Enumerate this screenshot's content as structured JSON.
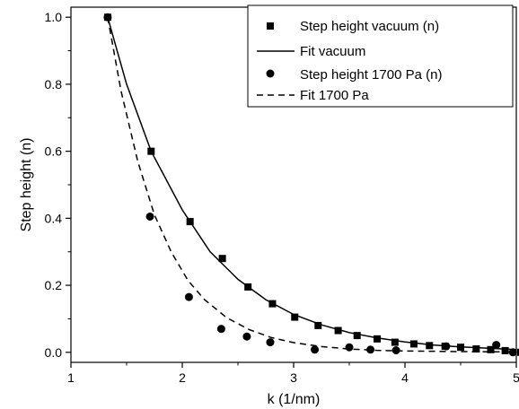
{
  "chart_data": {
    "type": "scatter",
    "title": "",
    "xlabel": "k (1/nm)",
    "ylabel": "Step height (n)",
    "xlim": [
      1,
      5
    ],
    "ylim": [
      -0.03,
      1.03
    ],
    "x_ticks": [
      "1",
      "2",
      "3",
      "4",
      "5"
    ],
    "y_ticks": [
      "0.0",
      "0.2",
      "0.4",
      "0.6",
      "0.8",
      "1.0"
    ],
    "legend_position": "top-right",
    "grid": false,
    "series": [
      {
        "name": "Step height vacuum (n)",
        "kind": "marker-square",
        "color": "#000000",
        "points": [
          [
            1.33,
            1.0
          ],
          [
            1.72,
            0.6
          ],
          [
            2.07,
            0.39
          ],
          [
            2.36,
            0.28
          ],
          [
            2.59,
            0.195
          ],
          [
            2.81,
            0.145
          ],
          [
            3.01,
            0.105
          ],
          [
            3.22,
            0.08
          ],
          [
            3.4,
            0.065
          ],
          [
            3.57,
            0.05
          ],
          [
            3.75,
            0.04
          ],
          [
            3.91,
            0.03
          ],
          [
            4.08,
            0.025
          ],
          [
            4.22,
            0.02
          ],
          [
            4.36,
            0.018
          ],
          [
            4.5,
            0.015
          ],
          [
            4.64,
            0.01
          ],
          [
            4.77,
            0.008
          ],
          [
            4.9,
            0.005
          ],
          [
            5.04,
            0.0
          ]
        ]
      },
      {
        "name": "Fit vacuum",
        "kind": "line-solid",
        "color": "#000000",
        "points": [
          [
            1.33,
            1.0
          ],
          [
            1.5,
            0.8
          ],
          [
            1.72,
            0.6
          ],
          [
            2.0,
            0.425
          ],
          [
            2.25,
            0.3
          ],
          [
            2.5,
            0.218
          ],
          [
            2.75,
            0.157
          ],
          [
            3.0,
            0.113
          ],
          [
            3.25,
            0.082
          ],
          [
            3.5,
            0.059
          ],
          [
            3.75,
            0.043
          ],
          [
            4.0,
            0.031
          ],
          [
            4.25,
            0.022
          ],
          [
            4.5,
            0.016
          ],
          [
            4.75,
            0.012
          ],
          [
            5.0,
            0.008
          ]
        ]
      },
      {
        "name": "Step height 1700 Pa (n)",
        "kind": "marker-circle",
        "color": "#000000",
        "points": [
          [
            1.33,
            1.0
          ],
          [
            1.71,
            0.405
          ],
          [
            2.06,
            0.165
          ],
          [
            2.35,
            0.07
          ],
          [
            2.58,
            0.047
          ],
          [
            2.79,
            0.03
          ],
          [
            3.19,
            0.008
          ],
          [
            3.5,
            0.015
          ],
          [
            3.69,
            0.008
          ],
          [
            3.92,
            0.006
          ],
          [
            4.37,
            0.018
          ],
          [
            4.82,
            0.022
          ],
          [
            4.97,
            0.0
          ]
        ]
      },
      {
        "name": "Fit 1700 Pa",
        "kind": "line-dashed",
        "color": "#000000",
        "points": [
          [
            1.33,
            1.0
          ],
          [
            1.45,
            0.78
          ],
          [
            1.6,
            0.57
          ],
          [
            1.75,
            0.41
          ],
          [
            1.9,
            0.3
          ],
          [
            2.05,
            0.215
          ],
          [
            2.2,
            0.157
          ],
          [
            2.4,
            0.103
          ],
          [
            2.6,
            0.068
          ],
          [
            2.8,
            0.044
          ],
          [
            3.0,
            0.029
          ],
          [
            3.25,
            0.017
          ],
          [
            3.5,
            0.01
          ],
          [
            3.75,
            0.006
          ],
          [
            4.0,
            0.004
          ],
          [
            4.5,
            0.002
          ],
          [
            5.0,
            0.001
          ]
        ]
      }
    ]
  }
}
